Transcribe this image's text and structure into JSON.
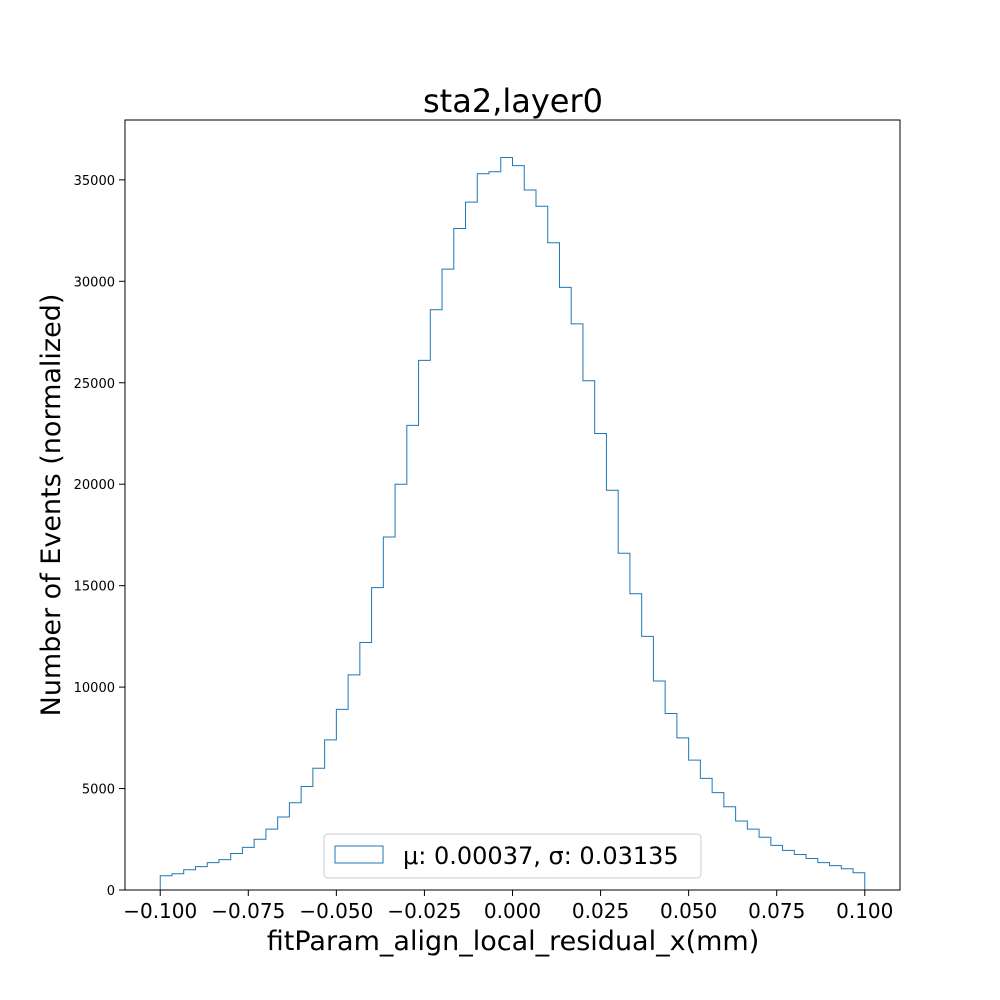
{
  "chart_data": {
    "type": "bar",
    "style": "step-histogram",
    "title": "sta2,layer0",
    "xlabel": "fitParam_align_local_residual_x(mm)",
    "ylabel": "Number of Events (normalized)",
    "xlim": [
      -0.11,
      0.11
    ],
    "ylim": [
      0,
      37950
    ],
    "xticks": [
      -0.1,
      -0.075,
      -0.05,
      -0.025,
      0.0,
      0.025,
      0.05,
      0.075,
      0.1
    ],
    "xtick_labels": [
      "−0.100",
      "−0.075",
      "−0.050",
      "−0.025",
      "0.000",
      "0.025",
      "0.050",
      "0.075",
      "0.100"
    ],
    "yticks": [
      0,
      5000,
      10000,
      15000,
      20000,
      25000,
      30000,
      35000
    ],
    "ytick_labels": [
      "0",
      "5000",
      "10000",
      "15000",
      "20000",
      "25000",
      "30000",
      "35000"
    ],
    "grid": false,
    "legend_position": "lower-center",
    "bin_edges_range": [
      -0.1,
      0.1
    ],
    "bin_count": 60,
    "series": [
      {
        "name": "μ: 0.00037, σ: 0.03135",
        "color": "#1f77b4",
        "values": [
          700,
          800,
          1000,
          1150,
          1350,
          1500,
          1800,
          2100,
          2500,
          3000,
          3600,
          4300,
          5100,
          6000,
          7400,
          8900,
          10600,
          12200,
          14900,
          17400,
          20000,
          22900,
          26100,
          28600,
          30600,
          32600,
          33900,
          35300,
          35400,
          36100,
          35700,
          34500,
          33700,
          31900,
          29700,
          27900,
          25100,
          22500,
          19700,
          16600,
          14600,
          12500,
          10300,
          8700,
          7500,
          6400,
          5500,
          4800,
          4100,
          3400,
          3000,
          2600,
          2200,
          1950,
          1750,
          1550,
          1350,
          1200,
          1050,
          850
        ]
      }
    ]
  }
}
